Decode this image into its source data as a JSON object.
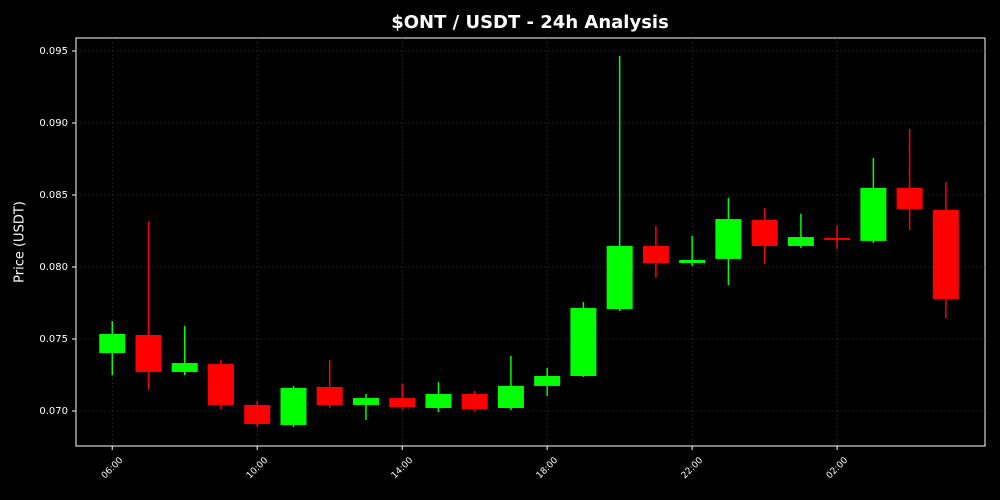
{
  "chart_data": {
    "type": "candlestick",
    "title": "$ONT / USDT - 24h Analysis",
    "y_label": "Price (USDT)",
    "categories": [
      "06:00",
      null,
      null,
      null,
      "10:00",
      null,
      null,
      null,
      "14:00",
      null,
      null,
      null,
      "18:00",
      null,
      null,
      null,
      "22:00",
      null,
      null,
      null,
      "02:00",
      null,
      null,
      null
    ],
    "open": [
      0.07403,
      0.07528,
      0.07271,
      0.07326,
      0.07042,
      0.06903,
      0.07167,
      0.07042,
      0.0709,
      0.07021,
      0.07118,
      0.07021,
      0.07174,
      0.07243,
      0.07708,
      0.08146,
      0.08028,
      0.08056,
      0.08326,
      0.08146,
      0.08201,
      0.08181,
      0.08549,
      0.08396
    ],
    "high": [
      0.07625,
      0.08313,
      0.0759,
      0.07354,
      0.0707,
      0.07174,
      0.07354,
      0.07118,
      0.07188,
      0.07201,
      0.07139,
      0.07382,
      0.07299,
      0.07757,
      0.09465,
      0.08285,
      0.08215,
      0.0848,
      0.0841,
      0.08368,
      0.08292,
      0.08757,
      0.08958,
      0.0859
    ],
    "low": [
      0.0725,
      0.07146,
      0.0725,
      0.07014,
      0.06889,
      0.06889,
      0.07021,
      0.06938,
      0.07014,
      0.06993,
      0.07,
      0.07007,
      0.07104,
      0.07236,
      0.07694,
      0.07924,
      0.08007,
      0.07875,
      0.08021,
      0.08132,
      0.08125,
      0.08167,
      0.08257,
      0.07646
    ],
    "close": [
      0.07535,
      0.07271,
      0.07333,
      0.07042,
      0.0691,
      0.0716,
      0.07042,
      0.0709,
      0.07028,
      0.07118,
      0.07014,
      0.07174,
      0.07243,
      0.07715,
      0.08146,
      0.08028,
      0.08049,
      0.08333,
      0.08146,
      0.08208,
      0.08188,
      0.08549,
      0.08403,
      0.07778
    ],
    "up_color": "#00ff00",
    "down_color": "#ff0000",
    "ylim": [
      0.06757,
      0.0959
    ],
    "yticks": [
      {
        "value": 0.07,
        "label": "0.070"
      },
      0.075,
      {
        "value": 0.08,
        "label": "0.080"
      },
      0.085,
      {
        "value": 0.09,
        "label": "0.090"
      },
      0.095
    ],
    "grid": true
  }
}
